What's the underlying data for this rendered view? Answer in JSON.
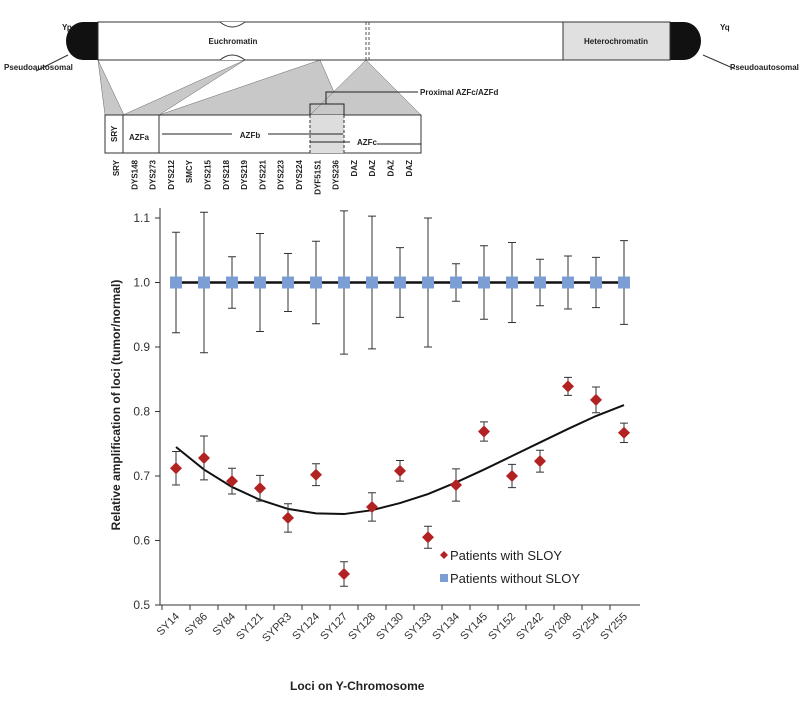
{
  "diagram": {
    "arm_p": "Yp",
    "arm_q": "Yq",
    "pseudo_left": "Pseudoautosomal",
    "pseudo_right": "Pseudoautosomal",
    "euchromatin": "Euchromatin",
    "heterochromatin": "Heterochromatin",
    "proximal": "Proximal AZFc/AZFd",
    "regions": [
      "SRY",
      "AZFa",
      "AZFb",
      "AZFc"
    ],
    "markers": [
      "SRY",
      "DYS148",
      "DYS273",
      "DYS212",
      "SMCY",
      "DYS215",
      "DYS218",
      "DYS219",
      "DYS221",
      "DYS223",
      "DYS224",
      "DYF51S1",
      "DYS236",
      "DAZ",
      "DAZ",
      "DAZ",
      "DAZ"
    ]
  },
  "chart_data": {
    "type": "scatter",
    "xlabel": "Loci on Y-Chromosome",
    "ylabel": "Relative amplification of loci (tumor/normal)",
    "ylim": [
      0.5,
      1.1
    ],
    "yticks": [
      "0.5",
      "0.6",
      "0.7",
      "0.8",
      "0.9",
      "1.0",
      "1.1"
    ],
    "legend_position": "bottom-right",
    "categories": [
      "SY14",
      "SY86",
      "SY84",
      "SY121",
      "SYPR3",
      "SY124",
      "SY127",
      "SY128",
      "SY130",
      "SY133",
      "SY134",
      "SY145",
      "SY152",
      "SY242",
      "SY208",
      "SY254",
      "SY255"
    ],
    "series": [
      {
        "name": "Patients with SLOY",
        "color": "#b22222",
        "marker": "diamond",
        "values": [
          0.712,
          0.728,
          0.692,
          0.681,
          0.635,
          0.702,
          0.548,
          0.652,
          0.708,
          0.605,
          0.686,
          0.769,
          0.7,
          0.723,
          0.839,
          0.818,
          0.767
        ],
        "errors": [
          0.026,
          0.034,
          0.02,
          0.02,
          0.022,
          0.017,
          0.019,
          0.022,
          0.016,
          0.017,
          0.025,
          0.015,
          0.018,
          0.017,
          0.014,
          0.02,
          0.015
        ]
      },
      {
        "name": "Patients without SLOY",
        "color": "#7b9fd4",
        "marker": "square",
        "values": [
          1,
          1,
          1,
          1,
          1,
          1,
          1,
          1,
          1,
          1,
          1,
          1,
          1,
          1,
          1,
          1,
          1
        ],
        "errors": [
          0.078,
          0.109,
          0.04,
          0.076,
          0.045,
          0.064,
          0.111,
          0.103,
          0.054,
          0.1,
          0.029,
          0.057,
          0.062,
          0.036,
          0.041,
          0.039,
          0.065
        ]
      }
    ],
    "trendline": {
      "x": [
        0,
        1,
        2,
        3,
        4,
        5,
        6,
        7,
        8,
        9,
        10,
        11,
        12,
        13,
        14,
        15,
        16
      ],
      "y": [
        0.745,
        0.71,
        0.683,
        0.663,
        0.649,
        0.642,
        0.641,
        0.647,
        0.658,
        0.672,
        0.69,
        0.71,
        0.731,
        0.752,
        0.773,
        0.793,
        0.81
      ]
    }
  }
}
